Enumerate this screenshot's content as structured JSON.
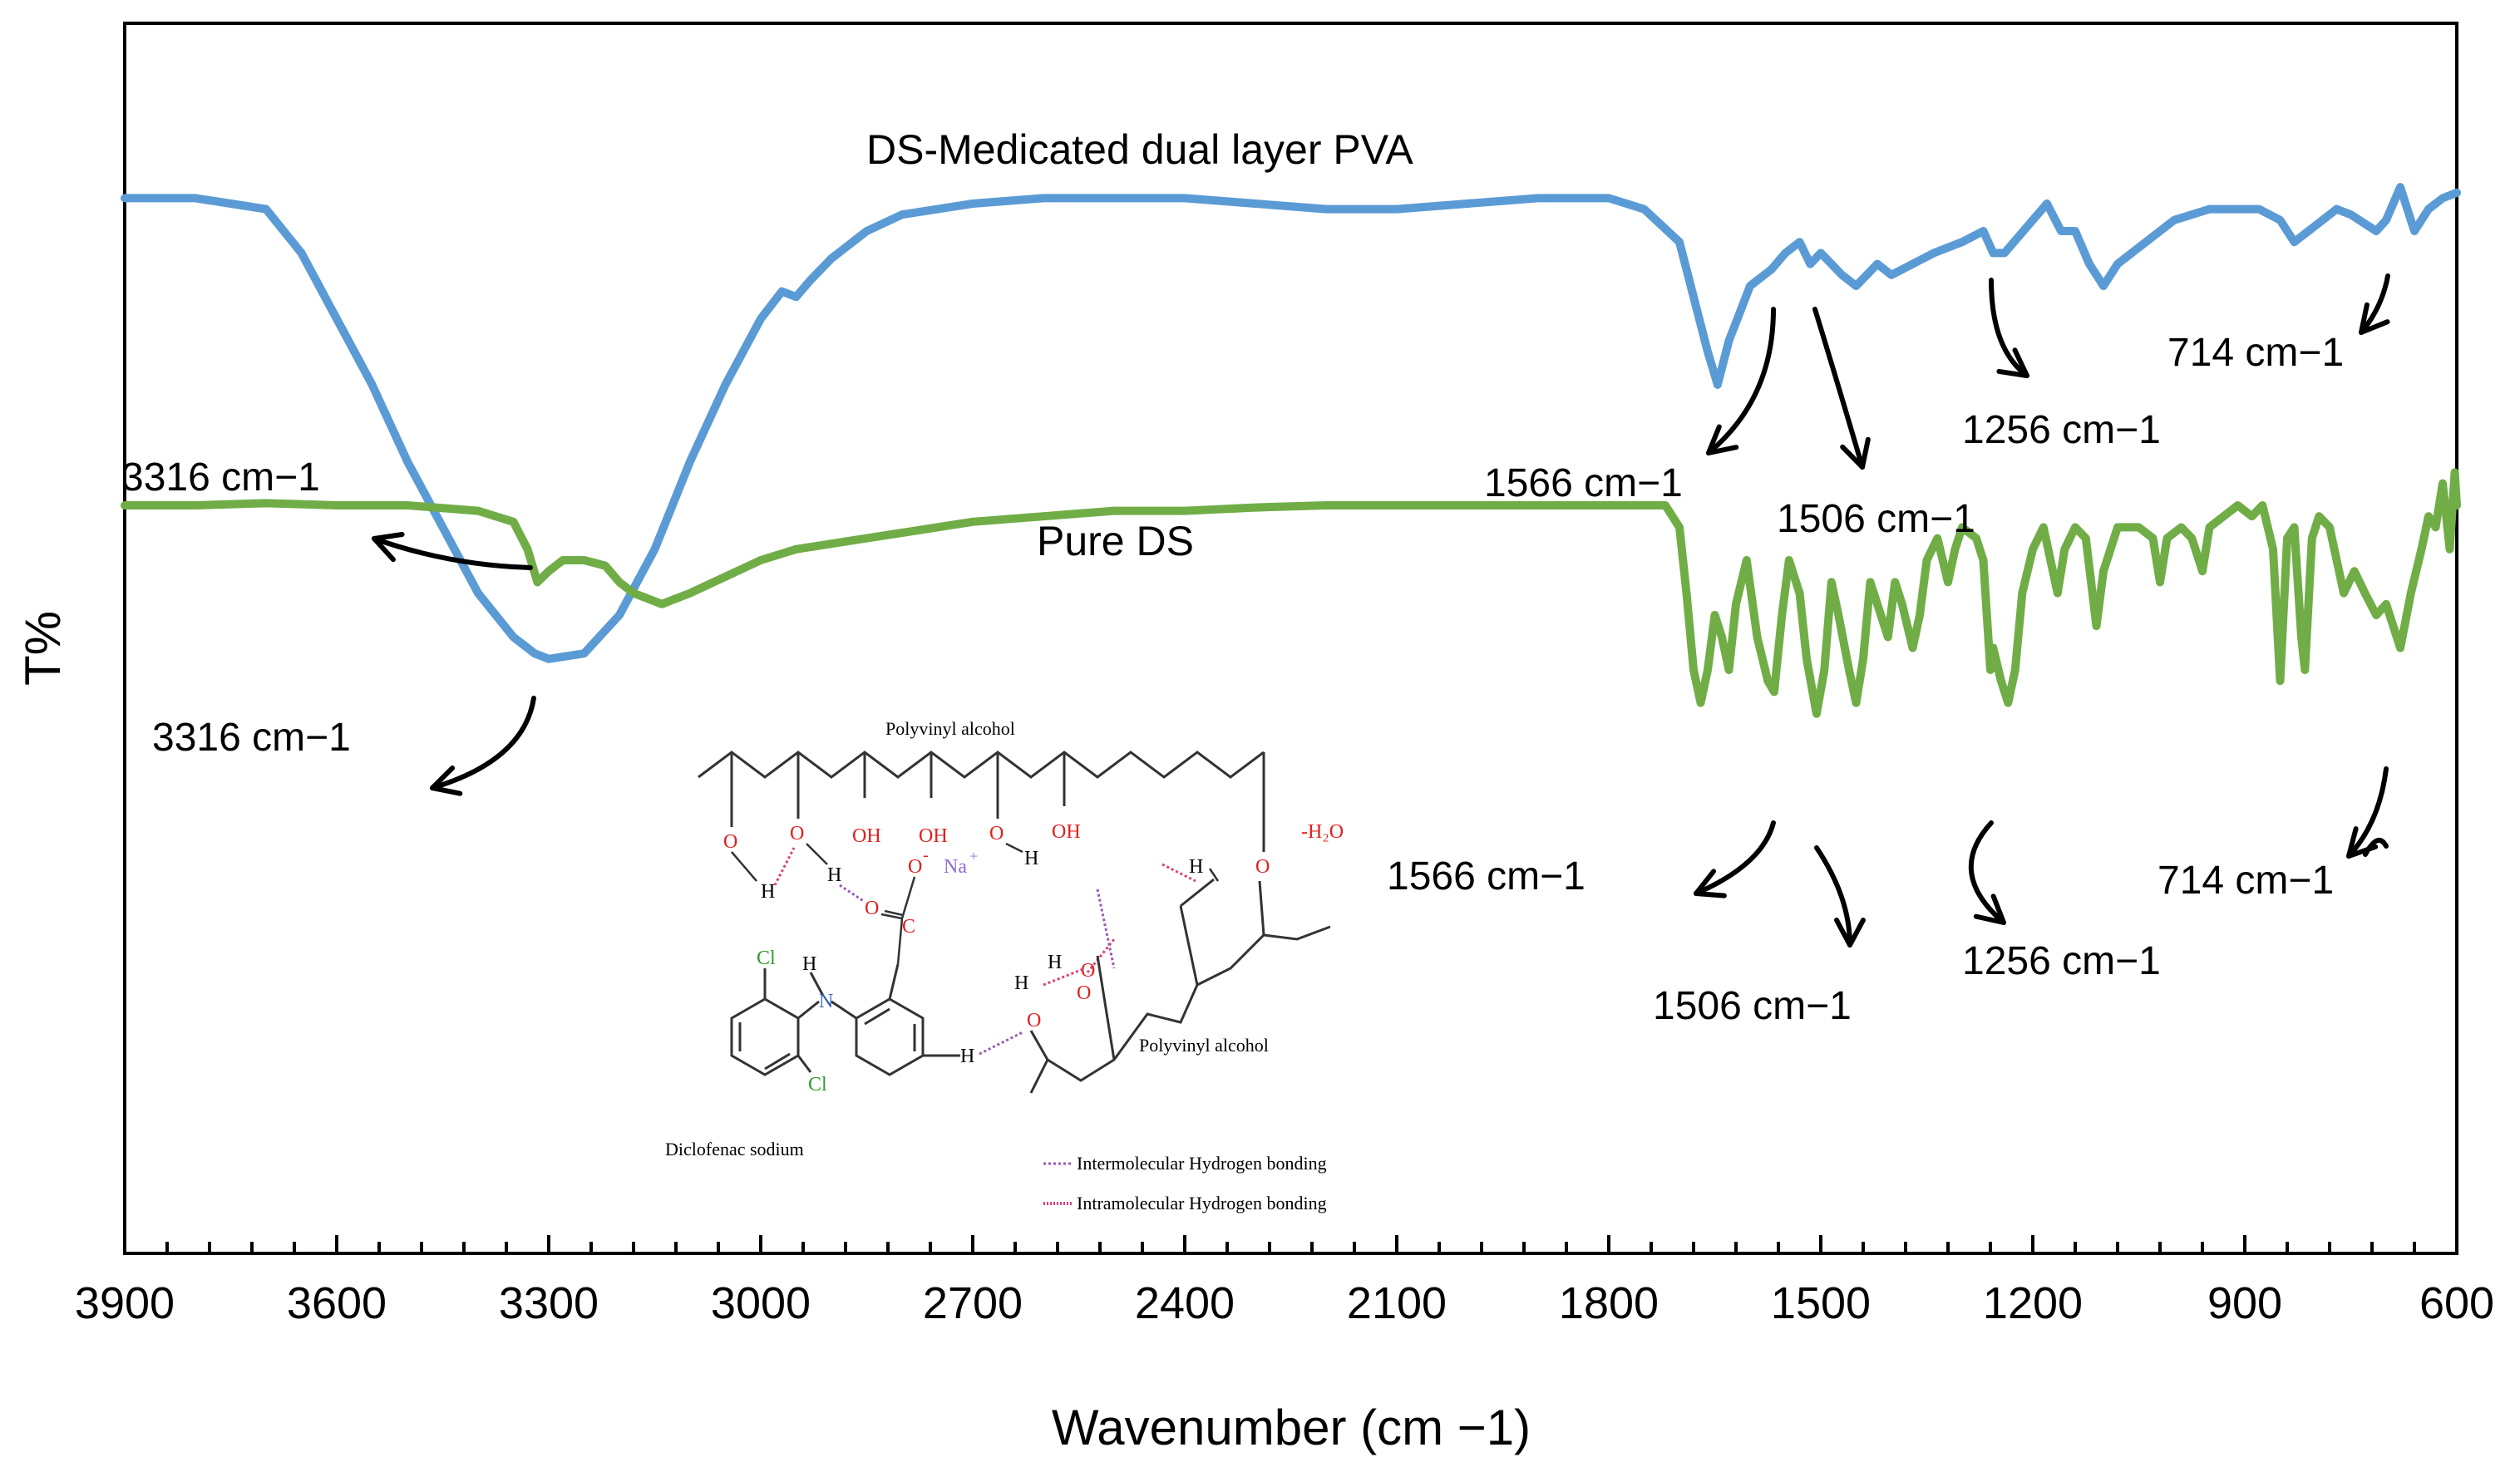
{
  "chart_data": {
    "type": "line",
    "title": "",
    "xlabel": "Wavenumber (cm −1)",
    "ylabel": "T%",
    "xlim": [
      3900,
      600
    ],
    "x_reversed": true,
    "x_ticks": [
      3900,
      3600,
      3300,
      3000,
      2700,
      2400,
      2100,
      1800,
      1500,
      1200,
      900,
      600
    ],
    "x_minor_step": 60,
    "ylim": [
      0,
      100
    ],
    "y_ticks_shown": false,
    "series": [
      {
        "name": "DS-Medicated dual layer PVA",
        "color": "#5b9bd5",
        "points": [
          [
            3900,
            88
          ],
          [
            3800,
            88
          ],
          [
            3750,
            87.5
          ],
          [
            3700,
            87
          ],
          [
            3650,
            83
          ],
          [
            3600,
            77
          ],
          [
            3550,
            71
          ],
          [
            3500,
            64
          ],
          [
            3450,
            58
          ],
          [
            3400,
            52
          ],
          [
            3350,
            48
          ],
          [
            3320,
            46.5
          ],
          [
            3300,
            46
          ],
          [
            3250,
            46.5
          ],
          [
            3200,
            50
          ],
          [
            3150,
            56
          ],
          [
            3100,
            64
          ],
          [
            3050,
            71
          ],
          [
            3000,
            77
          ],
          [
            2970,
            79.5
          ],
          [
            2950,
            79
          ],
          [
            2930,
            80.5
          ],
          [
            2900,
            82.5
          ],
          [
            2850,
            85
          ],
          [
            2800,
            86.5
          ],
          [
            2700,
            87.5
          ],
          [
            2600,
            88
          ],
          [
            2500,
            88
          ],
          [
            2400,
            88
          ],
          [
            2300,
            87.5
          ],
          [
            2200,
            87
          ],
          [
            2100,
            87
          ],
          [
            2000,
            87.5
          ],
          [
            1900,
            88
          ],
          [
            1800,
            88
          ],
          [
            1750,
            87
          ],
          [
            1700,
            84
          ],
          [
            1680,
            79
          ],
          [
            1660,
            74
          ],
          [
            1646,
            71
          ],
          [
            1630,
            75
          ],
          [
            1600,
            80
          ],
          [
            1570,
            81.5
          ],
          [
            1550,
            83
          ],
          [
            1530,
            84
          ],
          [
            1515,
            82
          ],
          [
            1500,
            83
          ],
          [
            1470,
            81
          ],
          [
            1450,
            80
          ],
          [
            1420,
            82
          ],
          [
            1400,
            81
          ],
          [
            1370,
            82
          ],
          [
            1340,
            83
          ],
          [
            1300,
            84
          ],
          [
            1270,
            85
          ],
          [
            1256,
            83
          ],
          [
            1240,
            83
          ],
          [
            1200,
            86
          ],
          [
            1180,
            87.5
          ],
          [
            1160,
            85
          ],
          [
            1140,
            85
          ],
          [
            1120,
            82
          ],
          [
            1100,
            80
          ],
          [
            1080,
            82
          ],
          [
            1040,
            84
          ],
          [
            1000,
            86
          ],
          [
            950,
            87
          ],
          [
            880,
            87
          ],
          [
            850,
            86
          ],
          [
            830,
            84
          ],
          [
            810,
            85
          ],
          [
            790,
            86
          ],
          [
            770,
            87
          ],
          [
            750,
            86.5
          ],
          [
            714,
            85
          ],
          [
            700,
            86
          ],
          [
            680,
            89
          ],
          [
            660,
            85
          ],
          [
            640,
            87
          ],
          [
            620,
            88
          ],
          [
            600,
            88.5
          ]
        ]
      },
      {
        "name": "Pure DS",
        "color": "#70ad47",
        "points": [
          [
            3900,
            60
          ],
          [
            3800,
            60
          ],
          [
            3700,
            60.2
          ],
          [
            3600,
            60
          ],
          [
            3500,
            60
          ],
          [
            3400,
            59.5
          ],
          [
            3350,
            58.5
          ],
          [
            3330,
            56
          ],
          [
            3316,
            53
          ],
          [
            3300,
            54
          ],
          [
            3280,
            55
          ],
          [
            3250,
            55
          ],
          [
            3220,
            54.5
          ],
          [
            3200,
            53
          ],
          [
            3180,
            52
          ],
          [
            3160,
            51.5
          ],
          [
            3140,
            51
          ],
          [
            3120,
            51.5
          ],
          [
            3100,
            52
          ],
          [
            3050,
            53.5
          ],
          [
            3000,
            55
          ],
          [
            2950,
            56
          ],
          [
            2900,
            56.5
          ],
          [
            2850,
            57
          ],
          [
            2800,
            57.5
          ],
          [
            2700,
            58.5
          ],
          [
            2600,
            59
          ],
          [
            2500,
            59.5
          ],
          [
            2400,
            59.5
          ],
          [
            2300,
            59.8
          ],
          [
            2200,
            60
          ],
          [
            2100,
            60
          ],
          [
            2000,
            60
          ],
          [
            1900,
            60
          ],
          [
            1800,
            60
          ],
          [
            1720,
            60
          ],
          [
            1700,
            58
          ],
          [
            1690,
            52
          ],
          [
            1680,
            45
          ],
          [
            1670,
            42
          ],
          [
            1660,
            45
          ],
          [
            1650,
            50
          ],
          [
            1640,
            48
          ],
          [
            1630,
            45
          ],
          [
            1620,
            51
          ],
          [
            1605,
            55
          ],
          [
            1590,
            48
          ],
          [
            1575,
            44
          ],
          [
            1566,
            43
          ],
          [
            1555,
            50
          ],
          [
            1545,
            55
          ],
          [
            1530,
            52
          ],
          [
            1520,
            46
          ],
          [
            1506,
            41
          ],
          [
            1495,
            45
          ],
          [
            1485,
            53
          ],
          [
            1475,
            50
          ],
          [
            1460,
            45
          ],
          [
            1450,
            42
          ],
          [
            1440,
            46
          ],
          [
            1430,
            53
          ],
          [
            1420,
            51
          ],
          [
            1405,
            48
          ],
          [
            1395,
            53
          ],
          [
            1385,
            51
          ],
          [
            1370,
            47
          ],
          [
            1360,
            50
          ],
          [
            1350,
            55
          ],
          [
            1335,
            57
          ],
          [
            1320,
            53
          ],
          [
            1310,
            56
          ],
          [
            1300,
            58
          ],
          [
            1280,
            57
          ],
          [
            1270,
            55
          ],
          [
            1260,
            45
          ],
          [
            1256,
            47
          ],
          [
            1245,
            44
          ],
          [
            1235,
            42
          ],
          [
            1225,
            45
          ],
          [
            1215,
            52
          ],
          [
            1200,
            56
          ],
          [
            1185,
            58
          ],
          [
            1175,
            55
          ],
          [
            1165,
            52
          ],
          [
            1155,
            56
          ],
          [
            1140,
            58
          ],
          [
            1125,
            57
          ],
          [
            1110,
            49
          ],
          [
            1100,
            54
          ],
          [
            1080,
            58
          ],
          [
            1050,
            58
          ],
          [
            1030,
            57
          ],
          [
            1020,
            53
          ],
          [
            1010,
            57
          ],
          [
            990,
            58
          ],
          [
            975,
            57
          ],
          [
            960,
            54
          ],
          [
            950,
            58
          ],
          [
            930,
            59
          ],
          [
            910,
            60
          ],
          [
            890,
            59
          ],
          [
            875,
            60
          ],
          [
            860,
            56
          ],
          [
            850,
            44
          ],
          [
            840,
            57
          ],
          [
            830,
            58
          ],
          [
            820,
            48
          ],
          [
            815,
            45
          ],
          [
            805,
            57
          ],
          [
            795,
            59
          ],
          [
            780,
            58
          ],
          [
            770,
            55
          ],
          [
            760,
            52
          ],
          [
            745,
            54
          ],
          [
            730,
            52
          ],
          [
            714,
            50
          ],
          [
            700,
            51
          ],
          [
            690,
            49
          ],
          [
            680,
            47
          ],
          [
            665,
            52
          ],
          [
            650,
            56
          ],
          [
            640,
            59
          ],
          [
            630,
            58
          ],
          [
            620,
            62
          ],
          [
            610,
            56
          ],
          [
            603,
            63
          ],
          [
            600,
            60
          ]
        ]
      }
    ],
    "annotations": {
      "series_labels": [
        "DS-Medicated dual layer PVA",
        "Pure DS"
      ],
      "peak_labels": [
        {
          "series": "DS-Medicated dual layer PVA",
          "text": "3316  cm−1"
        },
        {
          "series": "DS-Medicated dual layer PVA",
          "text": "1566  cm−1"
        },
        {
          "series": "DS-Medicated dual layer PVA",
          "text": "1506  cm−1"
        },
        {
          "series": "DS-Medicated dual layer PVA",
          "text": "1256 cm−1"
        },
        {
          "series": "DS-Medicated dual layer PVA",
          "text": "714  cm−1"
        },
        {
          "series": "Pure DS",
          "text": "3316  cm−1"
        },
        {
          "series": "Pure DS",
          "text": "1566  cm−1"
        },
        {
          "series": "Pure DS",
          "text": "1506  cm−1"
        },
        {
          "series": "Pure DS",
          "text": "1256 cm−1"
        },
        {
          "series": "Pure DS",
          "text": "714  cm−1"
        }
      ]
    },
    "inset_scheme": {
      "labels": {
        "pva_top": "Polyvinyl alcohol",
        "pva_right": "Polyvinyl alcohol",
        "drug": "Diclofenac sodium",
        "oh": "OH",
        "o": "O",
        "h": "H",
        "na": "Na",
        "n": "N",
        "cl": "Cl",
        "c": "C",
        "water": "-H₂O",
        "minus": "-",
        "plus": "+"
      },
      "legend": [
        {
          "text": "Intermolecular Hydrogen bonding",
          "color": "#9b59b6"
        },
        {
          "text": "Intramolecular Hydrogen bonding",
          "color": "#e0407a"
        }
      ]
    }
  }
}
